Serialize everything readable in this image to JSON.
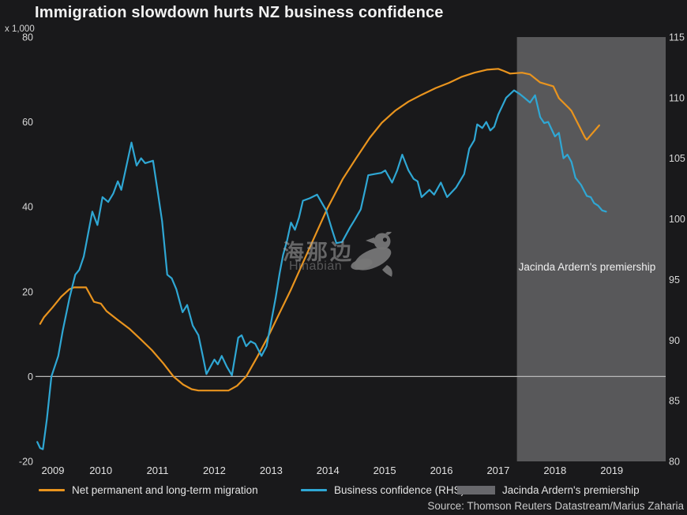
{
  "title": "Immigration slowdown hurts NZ business confidence",
  "axis_unit_label": "x 1,000",
  "source": "Source: Thomson Reuters Datastream/Marius Zaharia",
  "watermark": {
    "cn": "海那边",
    "en": "Hinabian",
    "icon": "bird-logo"
  },
  "colors": {
    "background": "#19191B",
    "migration": "#E9941E",
    "confidence": "#2FA7D4",
    "region": "#58585A",
    "region_swatch": "#68686C",
    "zero_line": "#B9B9B9",
    "tick_text": "#D9D9D9",
    "year_text": "#E2E2E2",
    "annotation_text": "#F0F0F0"
  },
  "legend": {
    "items": [
      {
        "label": "Net permanent and long-term migration",
        "swatch": "line",
        "color_key": "migration"
      },
      {
        "label": "Business confidence (RHS)",
        "swatch": "line",
        "color_key": "confidence"
      },
      {
        "label": "Jacinda Ardern's premiership",
        "swatch": "rect",
        "color_key": "region_swatch"
      }
    ]
  },
  "chart_data": {
    "type": "line",
    "title": "Immigration slowdown hurts NZ business confidence",
    "x_domain": [
      2008.85,
      2019.95
    ],
    "x_ticks": [
      2009,
      2010,
      2011,
      2012,
      2013,
      2014,
      2015,
      2016,
      2017,
      2018,
      2019
    ],
    "left_axis": {
      "label": "x 1,000",
      "range": [
        -20,
        80
      ],
      "ticks": [
        -20,
        0,
        20,
        40,
        60,
        80
      ]
    },
    "right_axis": {
      "range": [
        80,
        115
      ],
      "ticks": [
        80,
        85,
        90,
        95,
        100,
        105,
        110,
        115
      ]
    },
    "zero_line": {
      "axis": "left",
      "value": 0
    },
    "grid": false,
    "legend_position": "bottom",
    "shaded_region": {
      "label": "Jacinda Ardern's premiership",
      "x_start": 2017.33,
      "x_end": 2019.95
    },
    "series": [
      {
        "name": "Net permanent and long-term migration",
        "axis": "left",
        "color_key": "migration",
        "points": [
          [
            2008.93,
            12.4
          ],
          [
            2009.0,
            14.0
          ],
          [
            2009.15,
            16.3
          ],
          [
            2009.3,
            18.8
          ],
          [
            2009.45,
            20.6
          ],
          [
            2009.53,
            21.0
          ],
          [
            2009.74,
            21.0
          ],
          [
            2009.88,
            17.6
          ],
          [
            2010.0,
            17.2
          ],
          [
            2010.1,
            15.4
          ],
          [
            2010.3,
            13.3
          ],
          [
            2010.5,
            11.3
          ],
          [
            2010.7,
            8.8
          ],
          [
            2010.9,
            6.2
          ],
          [
            2011.1,
            3.1
          ],
          [
            2011.28,
            0.0
          ],
          [
            2011.45,
            -1.9
          ],
          [
            2011.6,
            -3.0
          ],
          [
            2011.72,
            -3.3
          ],
          [
            2012.25,
            -3.3
          ],
          [
            2012.4,
            -2.2
          ],
          [
            2012.56,
            0.0
          ],
          [
            2012.75,
            4.5
          ],
          [
            2012.95,
            9.5
          ],
          [
            2013.15,
            15.0
          ],
          [
            2013.35,
            20.5
          ],
          [
            2013.55,
            26.5
          ],
          [
            2013.75,
            32.5
          ],
          [
            2013.99,
            39.6
          ],
          [
            2014.26,
            46.5
          ],
          [
            2014.5,
            51.5
          ],
          [
            2014.74,
            56.3
          ],
          [
            2014.95,
            59.8
          ],
          [
            2015.19,
            62.7
          ],
          [
            2015.42,
            64.8
          ],
          [
            2015.65,
            66.4
          ],
          [
            2015.9,
            68.0
          ],
          [
            2016.13,
            69.2
          ],
          [
            2016.35,
            70.6
          ],
          [
            2016.58,
            71.6
          ],
          [
            2016.8,
            72.3
          ],
          [
            2017.0,
            72.5
          ],
          [
            2017.1,
            72.0
          ],
          [
            2017.21,
            71.4
          ],
          [
            2017.42,
            71.6
          ],
          [
            2017.56,
            71.2
          ],
          [
            2017.74,
            69.3
          ],
          [
            2017.97,
            68.4
          ],
          [
            2018.07,
            65.6
          ],
          [
            2018.25,
            63.2
          ],
          [
            2018.29,
            62.6
          ],
          [
            2018.53,
            56.3
          ],
          [
            2018.56,
            55.8
          ],
          [
            2018.78,
            59.2
          ]
        ]
      },
      {
        "name": "Business confidence (RHS)",
        "axis": "right",
        "color_key": "confidence",
        "points": [
          [
            2008.88,
            81.6
          ],
          [
            2008.93,
            81.1
          ],
          [
            2008.98,
            81.0
          ],
          [
            2009.05,
            83.5
          ],
          [
            2009.13,
            87.0
          ],
          [
            2009.25,
            88.7
          ],
          [
            2009.33,
            90.8
          ],
          [
            2009.45,
            93.5
          ],
          [
            2009.55,
            95.4
          ],
          [
            2009.62,
            95.8
          ],
          [
            2009.7,
            96.9
          ],
          [
            2009.85,
            100.6
          ],
          [
            2009.94,
            99.5
          ],
          [
            2010.03,
            101.8
          ],
          [
            2010.13,
            101.4
          ],
          [
            2010.22,
            102.1
          ],
          [
            2010.3,
            103.1
          ],
          [
            2010.36,
            102.4
          ],
          [
            2010.54,
            106.3
          ],
          [
            2010.63,
            104.4
          ],
          [
            2010.71,
            105.0
          ],
          [
            2010.78,
            104.6
          ],
          [
            2010.92,
            104.8
          ],
          [
            2011.0,
            102.3
          ],
          [
            2011.08,
            99.8
          ],
          [
            2011.17,
            95.4
          ],
          [
            2011.25,
            95.1
          ],
          [
            2011.33,
            94.2
          ],
          [
            2011.44,
            92.3
          ],
          [
            2011.52,
            92.9
          ],
          [
            2011.62,
            91.2
          ],
          [
            2011.72,
            90.4
          ],
          [
            2011.8,
            88.6
          ],
          [
            2011.86,
            87.2
          ],
          [
            2012.0,
            88.4
          ],
          [
            2012.06,
            88.0
          ],
          [
            2012.13,
            88.7
          ],
          [
            2012.22,
            87.8
          ],
          [
            2012.31,
            87.1
          ],
          [
            2012.42,
            90.2
          ],
          [
            2012.48,
            90.4
          ],
          [
            2012.56,
            89.5
          ],
          [
            2012.64,
            89.9
          ],
          [
            2012.72,
            89.7
          ],
          [
            2012.83,
            88.7
          ],
          [
            2012.92,
            89.5
          ],
          [
            2013.0,
            91.5
          ],
          [
            2013.08,
            93.5
          ],
          [
            2013.15,
            95.5
          ],
          [
            2013.21,
            97.0
          ],
          [
            2013.28,
            98.2
          ],
          [
            2013.35,
            99.7
          ],
          [
            2013.42,
            99.1
          ],
          [
            2013.49,
            100.1
          ],
          [
            2013.56,
            101.5
          ],
          [
            2013.68,
            101.7
          ],
          [
            2013.81,
            102.0
          ],
          [
            2013.97,
            100.7
          ],
          [
            2014.08,
            99.0
          ],
          [
            2014.15,
            98.0
          ],
          [
            2014.25,
            98.1
          ],
          [
            2014.39,
            99.3
          ],
          [
            2014.47,
            99.9
          ],
          [
            2014.58,
            100.8
          ],
          [
            2014.66,
            102.5
          ],
          [
            2014.71,
            103.6
          ],
          [
            2014.82,
            103.7
          ],
          [
            2014.94,
            103.8
          ],
          [
            2015.01,
            104.0
          ],
          [
            2015.13,
            103.0
          ],
          [
            2015.22,
            104.0
          ],
          [
            2015.31,
            105.3
          ],
          [
            2015.42,
            104.0
          ],
          [
            2015.51,
            103.3
          ],
          [
            2015.58,
            103.1
          ],
          [
            2015.65,
            101.8
          ],
          [
            2015.79,
            102.4
          ],
          [
            2015.87,
            102.0
          ],
          [
            2015.99,
            103.0
          ],
          [
            2016.1,
            101.8
          ],
          [
            2016.26,
            102.6
          ],
          [
            2016.4,
            103.7
          ],
          [
            2016.49,
            105.8
          ],
          [
            2016.58,
            106.5
          ],
          [
            2016.63,
            107.8
          ],
          [
            2016.72,
            107.5
          ],
          [
            2016.79,
            108.0
          ],
          [
            2016.86,
            107.3
          ],
          [
            2016.93,
            107.6
          ],
          [
            2017.0,
            108.6
          ],
          [
            2017.14,
            110.0
          ],
          [
            2017.28,
            110.6
          ],
          [
            2017.38,
            110.3
          ],
          [
            2017.46,
            110.0
          ],
          [
            2017.56,
            109.6
          ],
          [
            2017.65,
            110.2
          ],
          [
            2017.74,
            108.4
          ],
          [
            2017.81,
            107.9
          ],
          [
            2017.88,
            108.0
          ],
          [
            2018.0,
            106.8
          ],
          [
            2018.07,
            107.1
          ],
          [
            2018.15,
            105.0
          ],
          [
            2018.22,
            105.3
          ],
          [
            2018.29,
            104.7
          ],
          [
            2018.36,
            103.4
          ],
          [
            2018.46,
            102.8
          ],
          [
            2018.56,
            101.9
          ],
          [
            2018.63,
            101.8
          ],
          [
            2018.69,
            101.3
          ],
          [
            2018.76,
            101.1
          ],
          [
            2018.83,
            100.7
          ],
          [
            2018.9,
            100.6
          ]
        ]
      }
    ]
  }
}
